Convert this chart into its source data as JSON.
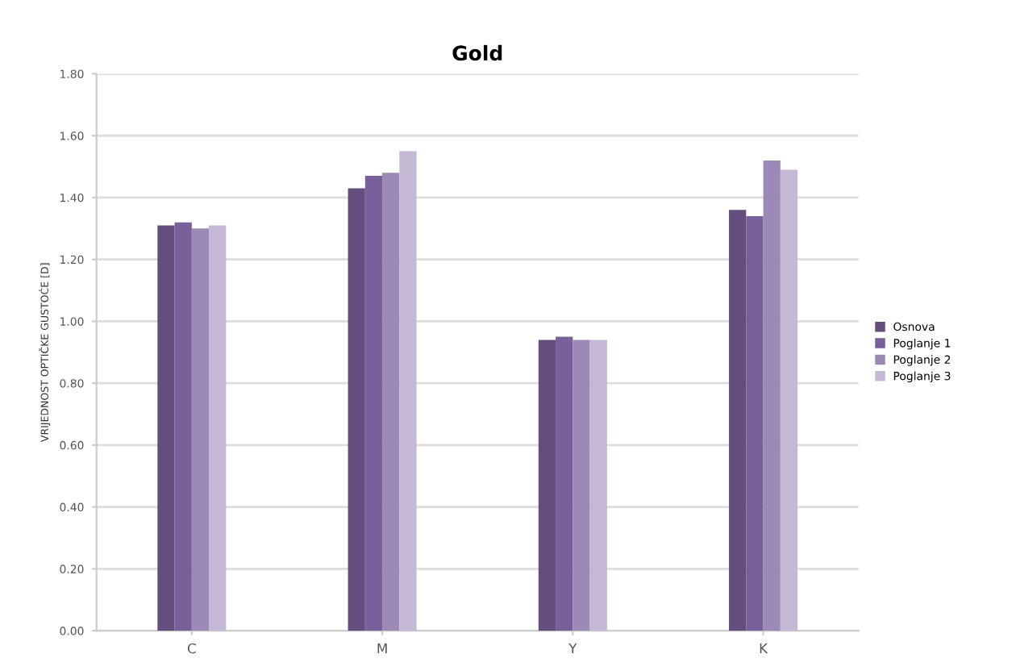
{
  "chart_data": {
    "type": "bar",
    "title": "Gold",
    "ylabel": "VRIJEDNOST OPTIČKE GUSTOĆE [D]",
    "categories": [
      "C",
      "M",
      "Y",
      "K"
    ],
    "series": [
      {
        "name": "Osnova",
        "color": "#634e7d",
        "values": [
          1.31,
          1.43,
          0.94,
          1.36
        ]
      },
      {
        "name": "Poglanje 1",
        "color": "#78609a",
        "values": [
          1.32,
          1.47,
          0.95,
          1.34
        ]
      },
      {
        "name": "Poglanje 2",
        "color": "#9c89b6",
        "values": [
          1.3,
          1.48,
          0.94,
          1.52
        ]
      },
      {
        "name": "Poglanje 3",
        "color": "#c4b8d4",
        "values": [
          1.31,
          1.55,
          0.94,
          1.49
        ]
      }
    ],
    "ylim": [
      0,
      1.8
    ],
    "yticks": [
      {
        "value": 0,
        "label": "0.00"
      },
      {
        "value": 0.2,
        "label": "0.20"
      },
      {
        "value": 0.4,
        "label": "0.40"
      },
      {
        "value": 0.6,
        "label": "0.60"
      },
      {
        "value": 0.8,
        "label": "0.80"
      },
      {
        "value": 1.0,
        "label": "1.00"
      },
      {
        "value": 1.2,
        "label": "1.20"
      },
      {
        "value": 1.4,
        "label": "1.40"
      },
      {
        "value": 1.6,
        "label": "1.60"
      },
      {
        "value": 1.8,
        "label": "1.80"
      }
    ],
    "grid": "y",
    "legend": "right"
  }
}
